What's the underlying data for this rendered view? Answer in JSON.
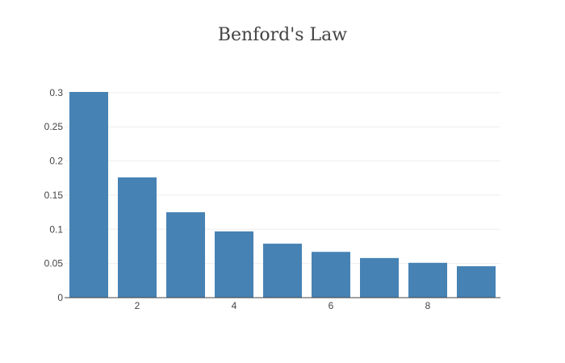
{
  "chart_data": {
    "type": "bar",
    "title": "Benford's Law",
    "xlabel": "",
    "ylabel": "",
    "x": [
      1,
      2,
      3,
      4,
      5,
      6,
      7,
      8,
      9
    ],
    "values": [
      0.301,
      0.176,
      0.125,
      0.097,
      0.079,
      0.067,
      0.058,
      0.051,
      0.046
    ],
    "xlim": [
      0.5,
      9.5
    ],
    "ylim": [
      0,
      0.301
    ],
    "x_ticks": [
      2,
      4,
      6,
      8
    ],
    "x_tick_labels": [
      "2",
      "4",
      "6",
      "8"
    ],
    "y_ticks": [
      0,
      0.05,
      0.1,
      0.15,
      0.2,
      0.25,
      0.3
    ],
    "y_tick_labels": [
      "0",
      "0.05",
      "0.1",
      "0.15",
      "0.2",
      "0.25",
      "0.3"
    ],
    "bar_color": "#4682b4",
    "grid": true,
    "legend": "none"
  }
}
